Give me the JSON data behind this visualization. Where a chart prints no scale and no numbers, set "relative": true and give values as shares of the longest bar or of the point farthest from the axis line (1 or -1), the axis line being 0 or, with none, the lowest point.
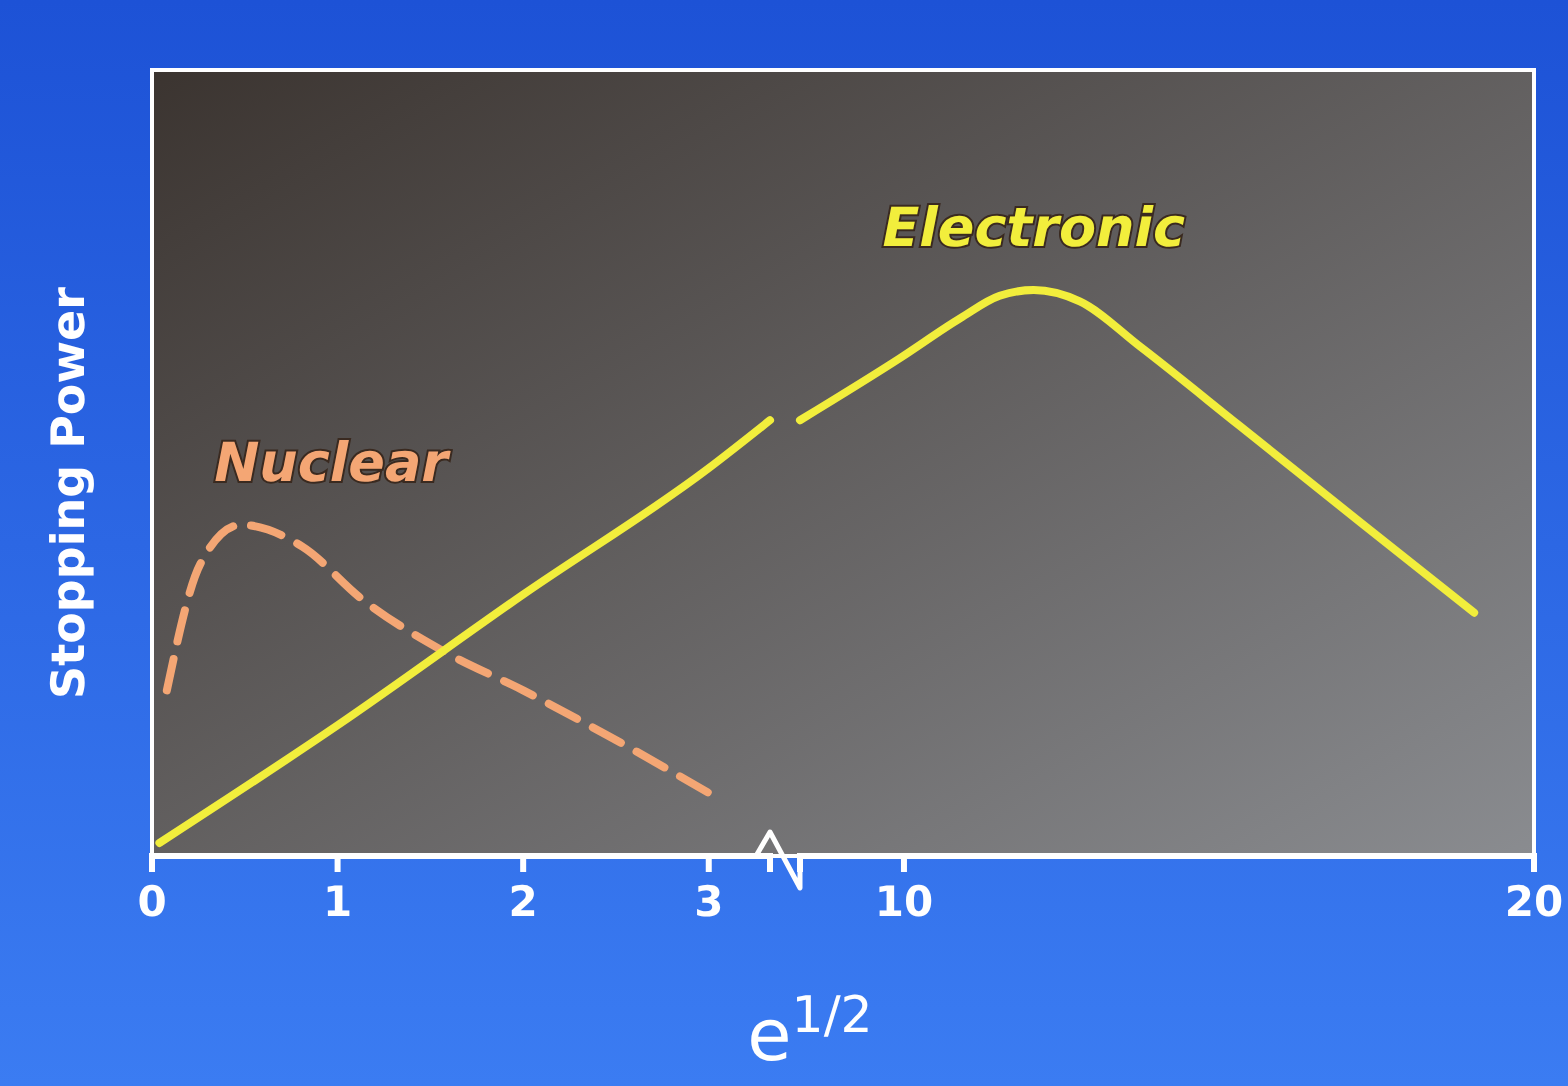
{
  "chart_data": [
    {
      "type": "line",
      "relative": true,
      "ylabel": "Stopping Power",
      "xlabel": "e$^{1/2}$",
      "xlim": [
        0,
        3.33
      ],
      "xticks": [
        0,
        1,
        2,
        3
      ],
      "grid": false,
      "legend": false,
      "marker": "none",
      "tick_labels": "x",
      "series": [
        {
          "name": "Nuclear",
          "color": "#f4a674",
          "line_style": "dashed",
          "x": [
            0.08,
            0.26,
            0.48,
            0.81,
            1.13,
            1.57,
            2.0,
            2.44,
            3.06
          ],
          "values": [
            0.38,
            0.67,
            0.76,
            0.71,
            0.59,
            0.47,
            0.38,
            0.28,
            0.13
          ]
        },
        {
          "color": "#f2ee3c",
          "line_style": "solid",
          "x": [
            0.04,
            1,
            2,
            3,
            3.33
          ],
          "values": [
            0.03,
            0.3,
            0.6,
            0.89,
            1
          ]
        }
      ]
    },
    {
      "type": "line",
      "relative": true,
      "xlim": [
        8.35,
        20
      ],
      "xticks": [
        10,
        20
      ],
      "grid": false,
      "legend": false,
      "marker": "none",
      "tick_labels": "x",
      "series": [
        {
          "name": "Electronic",
          "color": "#f2ee3c",
          "line_style": "solid",
          "x": [
            8.35,
            9.94,
            10.89,
            11.52,
            12.06,
            12.79,
            13.75,
            15.33,
            17.24,
            19.05
          ],
          "values": [
            0.77,
            0.88,
            0.95,
            0.99,
            1,
            0.98,
            0.9,
            0.76,
            0.59,
            0.43
          ]
        }
      ]
    }
  ]
}
